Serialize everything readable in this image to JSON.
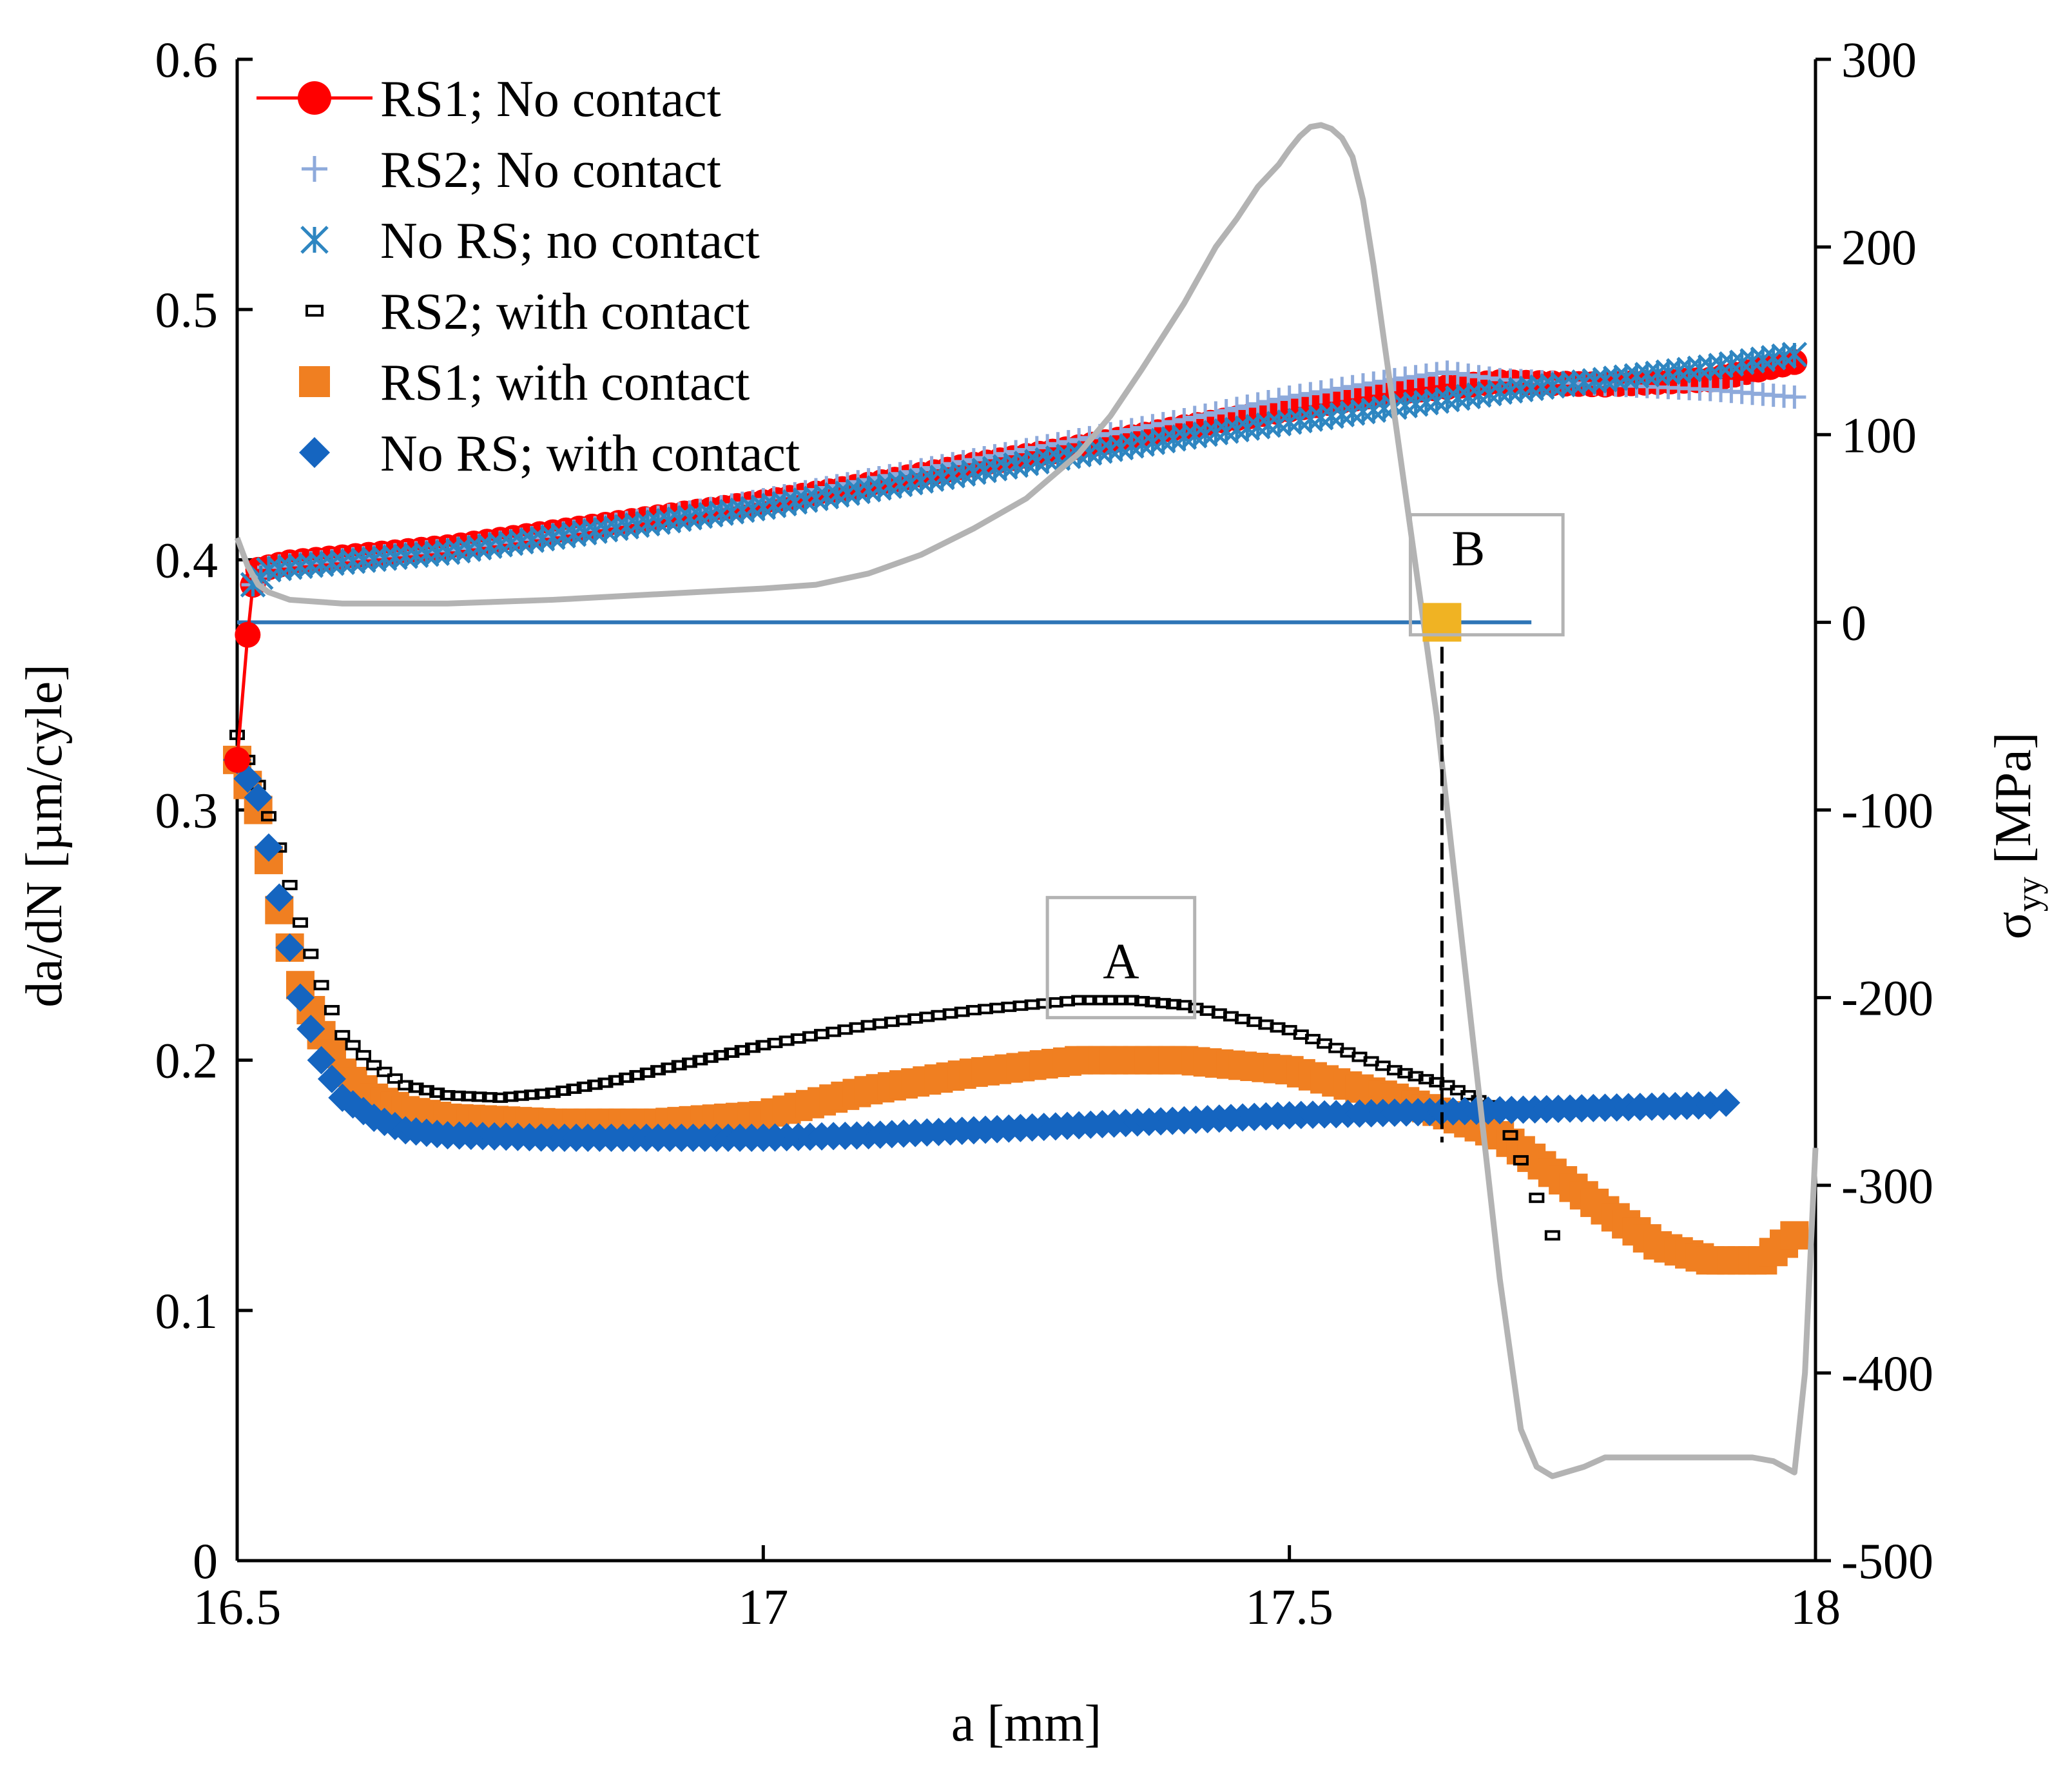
{
  "chart_data": {
    "type": "scatter",
    "xlabel": "a [mm]",
    "ylabel": "da/dN [µm/cyle]",
    "ylabel_right": "σ",
    "ylabel_right_sub": "yy",
    "ylabel_right_unit": " [MPa]",
    "xlim": [
      16.5,
      18
    ],
    "ylim": [
      0,
      0.6
    ],
    "ylim_right": [
      -500,
      300
    ],
    "x_ticks": [
      16.5,
      17,
      17.5,
      18
    ],
    "x_tick_labels": [
      "16.5",
      "17",
      "17.5",
      "18"
    ],
    "y_ticks": [
      0,
      0.1,
      0.2,
      0.3,
      0.4,
      0.5,
      0.6
    ],
    "y_tick_labels": [
      "0",
      "0.1",
      "0.2",
      "0.3",
      "0.4",
      "0.5",
      "0.6"
    ],
    "y_right_ticks": [
      -500,
      -400,
      -300,
      -200,
      -100,
      0,
      100,
      200,
      300
    ],
    "y_right_tick_labels": [
      "-500",
      "-400",
      "-300",
      "-200",
      "-100",
      "0",
      "100",
      "200",
      "300"
    ],
    "legend_position": "top-left",
    "series": [
      {
        "name": "RS1; No contact",
        "marker": "circle",
        "color": "#ff0000",
        "line": true,
        "x": [
          16.5,
          16.51,
          16.515,
          16.52,
          16.55,
          16.6,
          16.7,
          16.8,
          16.9,
          17.0,
          17.1,
          17.2,
          17.3,
          17.4,
          17.5,
          17.6,
          17.7,
          17.8,
          17.9,
          17.98
        ],
        "y": [
          0.32,
          0.37,
          0.39,
          0.396,
          0.399,
          0.401,
          0.405,
          0.411,
          0.417,
          0.423,
          0.43,
          0.438,
          0.445,
          0.453,
          0.46,
          0.467,
          0.471,
          0.47,
          0.472,
          0.479
        ]
      },
      {
        "name": "RS2; No contact",
        "marker": "plus",
        "color": "#8eaadb",
        "line": false,
        "x": [
          16.515,
          16.53,
          16.55,
          16.6,
          16.7,
          16.8,
          16.9,
          17.0,
          17.1,
          17.2,
          17.3,
          17.4,
          17.5,
          17.6,
          17.65,
          17.7,
          17.8,
          17.9,
          17.98
        ],
        "y": [
          0.39,
          0.397,
          0.398,
          0.4,
          0.404,
          0.41,
          0.417,
          0.424,
          0.432,
          0.44,
          0.448,
          0.456,
          0.465,
          0.472,
          0.475,
          0.472,
          0.47,
          0.468,
          0.465
        ]
      },
      {
        "name": "No RS; no contact",
        "marker": "x",
        "color": "#2e86c1",
        "line": false,
        "x": [
          16.515,
          16.53,
          16.55,
          16.6,
          16.7,
          16.8,
          16.9,
          17.0,
          17.1,
          17.2,
          17.3,
          17.4,
          17.5,
          17.6,
          17.7,
          17.8,
          17.9,
          17.98
        ],
        "y": [
          0.39,
          0.396,
          0.397,
          0.399,
          0.403,
          0.409,
          0.415,
          0.421,
          0.428,
          0.435,
          0.442,
          0.449,
          0.455,
          0.461,
          0.467,
          0.472,
          0.477,
          0.482
        ]
      },
      {
        "name": "RS2; with contact",
        "marker": "small-square",
        "color": "#000000",
        "line": false,
        "x": [
          16.5,
          16.52,
          16.54,
          16.56,
          16.58,
          16.6,
          16.63,
          16.66,
          16.7,
          16.75,
          16.8,
          16.85,
          16.9,
          16.95,
          17.0,
          17.1,
          17.2,
          17.3,
          17.35,
          17.4,
          17.5,
          17.6,
          17.65,
          17.7,
          17.72,
          17.735,
          17.75
        ],
        "y": [
          0.33,
          0.31,
          0.285,
          0.255,
          0.23,
          0.21,
          0.198,
          0.19,
          0.186,
          0.185,
          0.187,
          0.191,
          0.196,
          0.201,
          0.206,
          0.214,
          0.22,
          0.224,
          0.224,
          0.222,
          0.212,
          0.196,
          0.19,
          0.18,
          0.16,
          0.145,
          0.13
        ]
      },
      {
        "name": "RS1; with contact",
        "marker": "square",
        "color": "#f07f21",
        "line": false,
        "x": [
          16.5,
          16.52,
          16.54,
          16.56,
          16.58,
          16.6,
          16.63,
          16.66,
          16.7,
          16.8,
          16.9,
          17.0,
          17.1,
          17.2,
          17.3,
          17.4,
          17.5,
          17.6,
          17.65,
          17.7,
          17.75,
          17.8,
          17.85,
          17.9,
          17.95,
          17.98
        ],
        "y": [
          0.32,
          0.3,
          0.26,
          0.23,
          0.21,
          0.195,
          0.185,
          0.18,
          0.177,
          0.175,
          0.175,
          0.178,
          0.188,
          0.195,
          0.2,
          0.2,
          0.196,
          0.185,
          0.178,
          0.17,
          0.155,
          0.14,
          0.126,
          0.12,
          0.12,
          0.13
        ]
      },
      {
        "name": "No RS; with contact",
        "marker": "diamond",
        "color": "#1565c0",
        "line": false,
        "x": [
          16.5,
          16.52,
          16.54,
          16.56,
          16.58,
          16.6,
          16.63,
          16.66,
          16.7,
          16.8,
          16.9,
          17.0,
          17.1,
          17.2,
          17.3,
          17.4,
          17.5,
          17.6,
          17.7,
          17.8,
          17.9,
          17.915
        ],
        "y": [
          0.32,
          0.305,
          0.265,
          0.225,
          0.2,
          0.185,
          0.177,
          0.172,
          0.17,
          0.169,
          0.169,
          0.169,
          0.17,
          0.172,
          0.174,
          0.176,
          0.178,
          0.179,
          0.18,
          0.181,
          0.182,
          0.183
        ]
      },
      {
        "name": "",
        "axis": "right",
        "marker": "none",
        "color": "#b3b3b3",
        "line": true,
        "x": [
          16.5,
          16.51,
          16.52,
          16.53,
          16.55,
          16.6,
          16.7,
          16.8,
          16.9,
          17.0,
          17.05,
          17.1,
          17.15,
          17.2,
          17.25,
          17.3,
          17.33,
          17.36,
          17.4,
          17.43,
          17.45,
          17.47,
          17.49,
          17.5,
          17.51,
          17.52,
          17.53,
          17.54,
          17.55,
          17.56,
          17.57,
          17.58,
          17.6,
          17.62,
          17.64,
          17.66,
          17.68,
          17.7,
          17.72,
          17.735,
          17.75,
          17.78,
          17.8,
          17.85,
          17.9,
          17.94,
          17.96,
          17.97,
          17.98,
          17.99,
          18.0
        ],
        "y": [
          45,
          30,
          20,
          16,
          12,
          10,
          10,
          12,
          15,
          18,
          20,
          26,
          36,
          50,
          66,
          90,
          110,
          135,
          170,
          200,
          215,
          232,
          244,
          252,
          259,
          264,
          265,
          263,
          258,
          248,
          225,
          190,
          110,
          30,
          -50,
          -150,
          -250,
          -350,
          -430,
          -450,
          -455,
          -450,
          -445,
          -445,
          -445,
          -445,
          -447,
          -450,
          -453,
          -400,
          -280
        ]
      }
    ],
    "reference_line": {
      "axis": "right",
      "y": 0,
      "x_range": [
        16.5,
        17.73
      ],
      "color": "#2e75b6"
    },
    "marker_B": {
      "axis": "right",
      "x": 17.645,
      "y": 0,
      "color": "#f0b323"
    },
    "dashed_drop": {
      "x": 17.645,
      "y_right_top": 0,
      "y_left_bottom": 0.18
    },
    "annotations": [
      {
        "label": "A",
        "x": 17.34,
        "y": 0.225,
        "box": [
          17.27,
          17.41,
          0.217,
          0.265
        ]
      },
      {
        "label": "B",
        "x": 17.67,
        "y": 0.39,
        "box": [
          17.615,
          17.76,
          0.37,
          0.418
        ]
      }
    ]
  }
}
